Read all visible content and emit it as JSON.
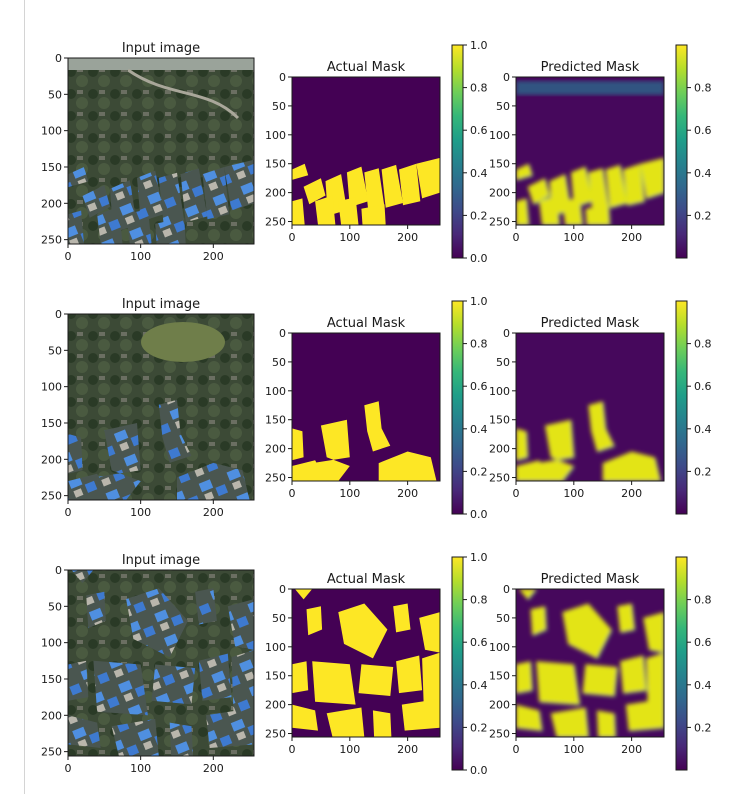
{
  "colors": {
    "viridis": [
      "#440154",
      "#482878",
      "#3e4a89",
      "#31688e",
      "#26828e",
      "#1f9e89",
      "#35b779",
      "#6ece58",
      "#b5de2b",
      "#fde725"
    ],
    "mask_background": "#440154",
    "mask_foreground": "#fde725"
  },
  "chart_data": [
    {
      "type": "heatmap",
      "row": 1,
      "panels": [
        {
          "kind": "image",
          "title": "Input image",
          "xticks": [
            "0",
            "100",
            "200"
          ],
          "yticks": [
            "0",
            "50",
            "100",
            "150",
            "200",
            "250"
          ],
          "xlim": [
            0,
            256
          ],
          "ylim": [
            256,
            0
          ]
        },
        {
          "kind": "mask",
          "title": "Actual Mask",
          "xticks": [
            "0",
            "100",
            "200"
          ],
          "yticks": [
            "0",
            "50",
            "100",
            "150",
            "200",
            "250"
          ],
          "colorbar": {
            "ticks": [
              "0.0",
              "0.2",
              "0.4",
              "0.6",
              "0.8",
              "1.0"
            ],
            "range": [
              0,
              1
            ]
          }
        },
        {
          "kind": "prediction",
          "title": "Predicted Mask",
          "xticks": [
            "0",
            "100",
            "200"
          ],
          "yticks": [
            "0",
            "50",
            "100",
            "150",
            "200",
            "250"
          ],
          "colorbar": {
            "ticks": [
              "0.2",
              "0.4",
              "0.6",
              "0.8"
            ],
            "range": [
              0,
              1
            ]
          }
        }
      ]
    },
    {
      "type": "heatmap",
      "row": 2,
      "panels": [
        {
          "kind": "image",
          "title": "Input image",
          "xticks": [
            "0",
            "100",
            "200"
          ],
          "yticks": [
            "0",
            "50",
            "100",
            "150",
            "200",
            "250"
          ],
          "xlim": [
            0,
            256
          ],
          "ylim": [
            256,
            0
          ]
        },
        {
          "kind": "mask",
          "title": "Actual Mask",
          "xticks": [
            "0",
            "100",
            "200"
          ],
          "yticks": [
            "0",
            "50",
            "100",
            "150",
            "200",
            "250"
          ],
          "colorbar": {
            "ticks": [
              "0.0",
              "0.2",
              "0.4",
              "0.6",
              "0.8",
              "1.0"
            ],
            "range": [
              0,
              1
            ]
          }
        },
        {
          "kind": "prediction",
          "title": "Predicted Mask",
          "xticks": [
            "0",
            "100",
            "200"
          ],
          "yticks": [
            "0",
            "50",
            "100",
            "150",
            "200",
            "250"
          ],
          "colorbar": {
            "ticks": [
              "0.2",
              "0.4",
              "0.6",
              "0.8"
            ],
            "range": [
              0,
              1
            ]
          }
        }
      ]
    },
    {
      "type": "heatmap",
      "row": 3,
      "panels": [
        {
          "kind": "image",
          "title": "Input image",
          "xticks": [
            "0",
            "100",
            "200"
          ],
          "yticks": [
            "0",
            "50",
            "100",
            "150",
            "200",
            "250"
          ],
          "xlim": [
            0,
            256
          ],
          "ylim": [
            256,
            0
          ]
        },
        {
          "kind": "mask",
          "title": "Actual Mask",
          "xticks": [
            "0",
            "100",
            "200"
          ],
          "yticks": [
            "0",
            "50",
            "100",
            "150",
            "200",
            "250"
          ],
          "colorbar": {
            "ticks": [
              "0.0",
              "0.2",
              "0.4",
              "0.6",
              "0.8",
              "1.0"
            ],
            "range": [
              0,
              1
            ]
          }
        },
        {
          "kind": "prediction",
          "title": "Predicted Mask",
          "xticks": [
            "0",
            "100",
            "200"
          ],
          "yticks": [
            "0",
            "50",
            "100",
            "150",
            "200",
            "250"
          ],
          "colorbar": {
            "ticks": [
              "0.2",
              "0.4",
              "0.6",
              "0.8"
            ],
            "range": [
              0,
              1
            ]
          }
        }
      ]
    }
  ]
}
